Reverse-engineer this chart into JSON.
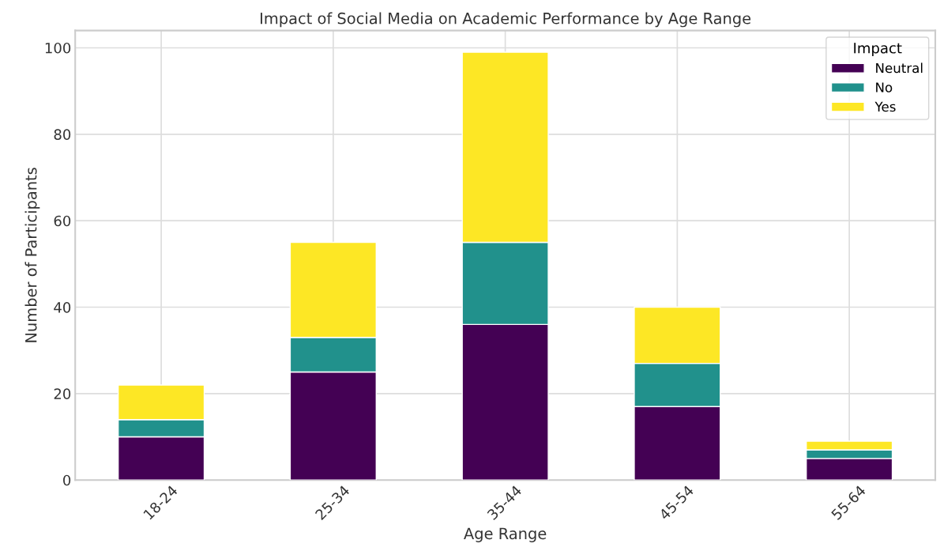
{
  "chart_data": {
    "type": "bar",
    "title": "Impact of Social Media on Academic Performance by Age Range",
    "xlabel": "Age Range",
    "ylabel": "Number of Participants",
    "legend_title": "Impact",
    "categories": [
      "18-24",
      "25-34",
      "35-44",
      "45-54",
      "55-64"
    ],
    "series": [
      {
        "name": "Neutral",
        "color": "#440154",
        "values": [
          10,
          25,
          36,
          17,
          5
        ]
      },
      {
        "name": "No",
        "color": "#21918c",
        "values": [
          4,
          8,
          19,
          10,
          2
        ]
      },
      {
        "name": "Yes",
        "color": "#fde725",
        "values": [
          8,
          22,
          44,
          13,
          2
        ]
      }
    ],
    "stacked": true,
    "ylim": [
      0,
      104
    ],
    "yticks": [
      0,
      20,
      40,
      60,
      80,
      100
    ],
    "grid": true,
    "legend": "top right"
  }
}
